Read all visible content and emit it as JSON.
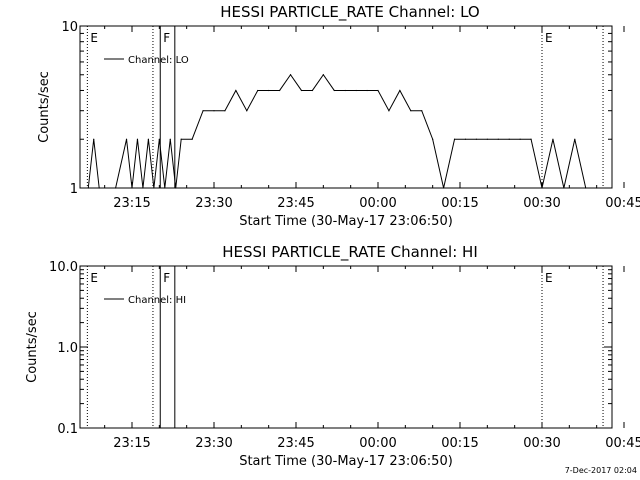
{
  "timestamp": "7-Dec-2017 02:04",
  "chart_data": [
    {
      "type": "line",
      "title": "HESSI PARTICLE_RATE Channel: LO",
      "xlabel": "Start Time (30-May-17 23:06:50)",
      "ylabel": "Counts/sec",
      "yscale": "log",
      "ylim": [
        1,
        10
      ],
      "xlim_minutes_label": [
        "23:06:50",
        "00:49:00"
      ],
      "xticks": [
        "23:15",
        "23:30",
        "23:45",
        "00:00",
        "00:15",
        "00:30",
        "00:45"
      ],
      "yticks": [
        "1",
        "10"
      ],
      "legend": {
        "position": "top-left",
        "entries": [
          "Channel: LO"
        ]
      },
      "markers": [
        {
          "label": "E",
          "time": "23:06:50",
          "style": "dotted"
        },
        {
          "label": "",
          "time": "23:18:50",
          "style": "dotted"
        },
        {
          "label": "F",
          "time": "23:20:10",
          "style": "solid"
        },
        {
          "label": "",
          "time": "23:22:50",
          "style": "solid"
        },
        {
          "label": "E",
          "time": "00:30:00",
          "style": "dotted"
        },
        {
          "label": "",
          "time": "00:41:10",
          "style": "dotted"
        }
      ],
      "series": [
        {
          "name": "Channel: LO",
          "x": [
            "23:07",
            "23:08",
            "23:09",
            "23:12",
            "23:14",
            "23:15",
            "23:16",
            "23:17",
            "23:18",
            "23:19",
            "23:20",
            "23:21",
            "23:22",
            "23:23",
            "23:24",
            "23:26",
            "23:28",
            "23:30",
            "23:32",
            "23:34",
            "23:36",
            "23:38",
            "23:40",
            "23:42",
            "23:44",
            "23:46",
            "23:48",
            "23:50",
            "23:52",
            "23:54",
            "23:56",
            "23:58",
            "00:00",
            "00:02",
            "00:04",
            "00:06",
            "00:08",
            "00:10",
            "00:12",
            "00:14",
            "00:16",
            "00:18",
            "00:20",
            "00:22",
            "00:24",
            "00:26",
            "00:28",
            "00:30",
            "00:32",
            "00:34",
            "00:36",
            "00:38",
            "00:40"
          ],
          "values": [
            1,
            2,
            1,
            1,
            2,
            1,
            2,
            1,
            2,
            1,
            2,
            1,
            2,
            1,
            2,
            2,
            3,
            3,
            3,
            4,
            3,
            4,
            4,
            4,
            5,
            4,
            4,
            5,
            4,
            4,
            4,
            4,
            4,
            3,
            4,
            3,
            3,
            2,
            1,
            2,
            2,
            2,
            2,
            2,
            2,
            2,
            2,
            1,
            2,
            1,
            2,
            1,
            1
          ]
        }
      ]
    },
    {
      "type": "line",
      "title": "HESSI PARTICLE_RATE Channel: HI",
      "xlabel": "Start Time (30-May-17 23:06:50)",
      "ylabel": "Counts/sec",
      "yscale": "log",
      "ylim": [
        0.1,
        10
      ],
      "xticks": [
        "23:15",
        "23:30",
        "23:45",
        "00:00",
        "00:15",
        "00:30",
        "00:45"
      ],
      "yticks": [
        "0.1",
        "1.0",
        "10.0"
      ],
      "legend": {
        "position": "top-left",
        "entries": [
          "Channel: HI"
        ]
      },
      "markers": [
        {
          "label": "E",
          "time": "23:06:50",
          "style": "dotted"
        },
        {
          "label": "",
          "time": "23:18:50",
          "style": "dotted"
        },
        {
          "label": "F",
          "time": "23:20:10",
          "style": "solid"
        },
        {
          "label": "",
          "time": "23:22:50",
          "style": "solid"
        },
        {
          "label": "E",
          "time": "00:30:00",
          "style": "dotted"
        },
        {
          "label": "",
          "time": "00:41:10",
          "style": "dotted"
        }
      ],
      "series": [
        {
          "name": "Channel: HI",
          "x": [],
          "values": []
        }
      ]
    }
  ]
}
